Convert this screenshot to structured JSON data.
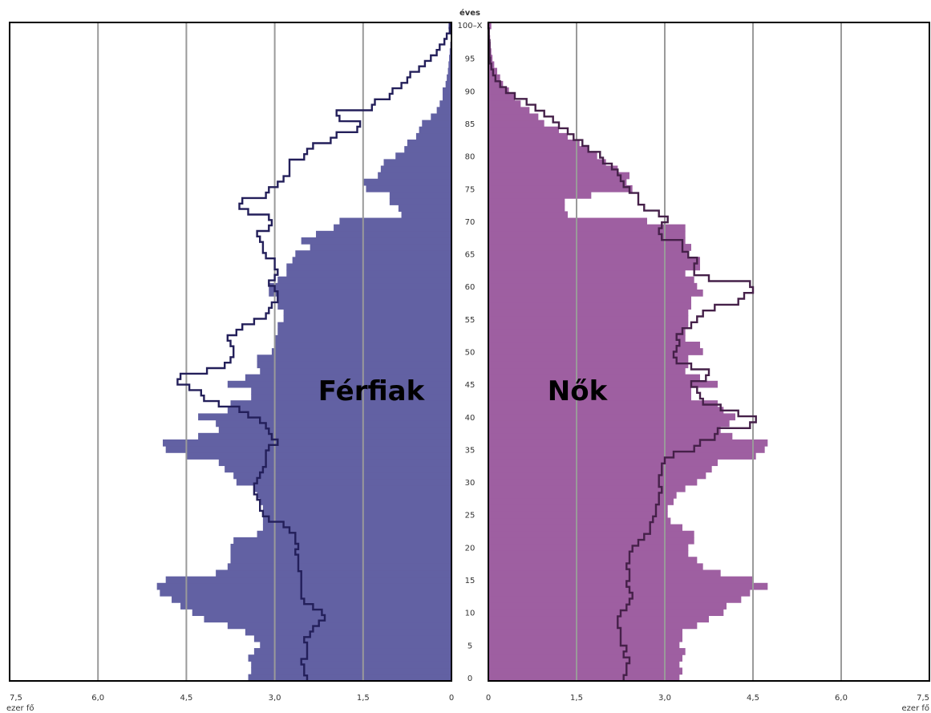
{
  "chart_data": {
    "type": "bar",
    "orientation": "horizontal",
    "layout": "population-pyramid",
    "age_axis_label": "éves",
    "age_top_label": "100–X",
    "age_ticks": [
      0,
      5,
      10,
      15,
      20,
      25,
      30,
      35,
      40,
      45,
      50,
      55,
      60,
      65,
      70,
      75,
      80,
      85,
      90,
      95
    ],
    "x_unit_label": "ezer fő",
    "x_ticks": [
      "0",
      "1,5",
      "3,0",
      "4,5",
      "6,0",
      "7,5"
    ],
    "xlim": [
      0,
      7.5
    ],
    "grid": "vertical",
    "panels": [
      {
        "name": "Férfiak",
        "side": "left",
        "bar_color": "#6261a3",
        "outline_color": "#231f5a",
        "bars": [
          3.45,
          3.4,
          3.4,
          3.45,
          3.35,
          3.25,
          3.35,
          3.5,
          3.8,
          4.2,
          4.4,
          4.6,
          4.75,
          4.95,
          5.0,
          4.85,
          4.0,
          3.8,
          3.75,
          3.75,
          3.75,
          3.7,
          3.3,
          3.2,
          3.2,
          3.2,
          3.2,
          3.25,
          3.3,
          3.35,
          3.65,
          3.7,
          3.85,
          3.95,
          4.5,
          4.85,
          4.9,
          4.3,
          3.95,
          4.0,
          4.3,
          3.8,
          3.75,
          3.4,
          3.4,
          3.8,
          3.5,
          3.25,
          3.3,
          3.3,
          3.05,
          3.0,
          3.0,
          2.95,
          2.95,
          2.85,
          2.85,
          2.95,
          2.95,
          3.1,
          3.1,
          2.95,
          2.8,
          2.8,
          2.7,
          2.65,
          2.4,
          2.55,
          2.3,
          2.0,
          1.9,
          0.85,
          0.9,
          1.05,
          1.05,
          1.45,
          1.5,
          1.25,
          1.2,
          1.15,
          0.95,
          0.8,
          0.75,
          0.6,
          0.55,
          0.5,
          0.35,
          0.25,
          0.2,
          0.15,
          0.15,
          0.1,
          0.08,
          0.06,
          0.05,
          0.04,
          0.03,
          0.02,
          0.01,
          0.01,
          0.05
        ],
        "outline": [
          2.45,
          2.5,
          2.5,
          2.55,
          2.45,
          2.45,
          2.45,
          2.5,
          2.4,
          2.35,
          2.25,
          2.15,
          2.2,
          2.35,
          2.5,
          2.55,
          2.55,
          2.55,
          2.55,
          2.55,
          2.6,
          2.6,
          2.6,
          2.65,
          2.6,
          2.65,
          2.65,
          2.75,
          2.85,
          3.1,
          3.2,
          3.25,
          3.25,
          3.3,
          3.35,
          3.35,
          3.3,
          3.25,
          3.2,
          3.15,
          3.15,
          3.15,
          3.1,
          2.95,
          3.05,
          3.1,
          3.15,
          3.25,
          3.45,
          3.6,
          3.95,
          4.2,
          4.25,
          4.45,
          4.65,
          4.6,
          4.15,
          3.85,
          3.75,
          3.7,
          3.7,
          3.75,
          3.8,
          3.65,
          3.55,
          3.35,
          3.15,
          3.1,
          3.05,
          2.95,
          2.95,
          3.0,
          3.1,
          3.0,
          2.95,
          3.0,
          3.0,
          3.15,
          3.2,
          3.2,
          3.25,
          3.3,
          3.1,
          3.05,
          3.1,
          3.45,
          3.6,
          3.55,
          3.15,
          3.1,
          2.95,
          2.85,
          2.75,
          2.75,
          2.75,
          2.5,
          2.45,
          2.35,
          2.05,
          1.95,
          1.6,
          1.55,
          1.9,
          1.95,
          1.35,
          1.3,
          1.05,
          1.0,
          0.85,
          0.75,
          0.7,
          0.55,
          0.45,
          0.35,
          0.25,
          0.2,
          0.12,
          0.08,
          0.03,
          0.02
        ]
      },
      {
        "name": "Nők",
        "side": "right",
        "bar_color": "#9e5fa1",
        "outline_color": "#452049",
        "bars": [
          3.25,
          3.3,
          3.25,
          3.3,
          3.35,
          3.25,
          3.3,
          3.3,
          3.55,
          3.75,
          4.0,
          4.05,
          4.3,
          4.45,
          4.75,
          4.5,
          3.95,
          3.65,
          3.55,
          3.4,
          3.4,
          3.5,
          3.5,
          3.3,
          3.1,
          3.05,
          3.05,
          3.15,
          3.2,
          3.35,
          3.55,
          3.7,
          3.8,
          3.9,
          4.55,
          4.7,
          4.75,
          4.15,
          3.95,
          4.1,
          4.2,
          4.0,
          3.9,
          3.45,
          3.45,
          3.9,
          3.6,
          3.35,
          3.4,
          3.4,
          3.65,
          3.6,
          3.35,
          3.35,
          3.4,
          3.4,
          3.4,
          3.45,
          3.45,
          3.65,
          3.55,
          3.5,
          3.35,
          3.6,
          3.6,
          3.4,
          3.45,
          3.35,
          3.35,
          3.35,
          2.7,
          1.35,
          1.3,
          1.3,
          1.75,
          2.45,
          2.35,
          2.4,
          2.2,
          2.0,
          1.85,
          1.7,
          1.55,
          1.35,
          1.2,
          0.95,
          0.85,
          0.7,
          0.55,
          0.45,
          0.35,
          0.25,
          0.2,
          0.15,
          0.1,
          0.07,
          0.05,
          0.04,
          0.03,
          0.02,
          0.05
        ],
        "outline": [
          2.3,
          2.35,
          2.35,
          2.4,
          2.3,
          2.35,
          2.25,
          2.25,
          2.25,
          2.2,
          2.2,
          2.25,
          2.35,
          2.4,
          2.45,
          2.4,
          2.35,
          2.4,
          2.4,
          2.35,
          2.4,
          2.4,
          2.45,
          2.55,
          2.65,
          2.75,
          2.75,
          2.8,
          2.85,
          2.85,
          2.9,
          2.9,
          2.95,
          2.9,
          2.9,
          2.95,
          2.95,
          3.0,
          3.15,
          3.5,
          3.6,
          3.85,
          3.9,
          4.45,
          4.55,
          4.25,
          3.95,
          3.65,
          3.6,
          3.55,
          3.45,
          3.7,
          3.75,
          3.45,
          3.2,
          3.15,
          3.2,
          3.25,
          3.2,
          3.3,
          3.45,
          3.55,
          3.65,
          3.85,
          4.25,
          4.35,
          4.5,
          4.45,
          3.75,
          3.5,
          3.5,
          3.55,
          3.4,
          3.3,
          3.3,
          2.95,
          2.9,
          2.95,
          3.05,
          2.9,
          2.65,
          2.55,
          2.55,
          2.4,
          2.3,
          2.25,
          2.2,
          2.1,
          1.95,
          1.9,
          1.7,
          1.6,
          1.45,
          1.35,
          1.2,
          1.1,
          0.95,
          0.8,
          0.65,
          0.45,
          0.3,
          0.2,
          0.12,
          0.08,
          0.05,
          0.03,
          0.02,
          0.02,
          0.02,
          0.01,
          0.01,
          0.0
        ]
      }
    ]
  }
}
